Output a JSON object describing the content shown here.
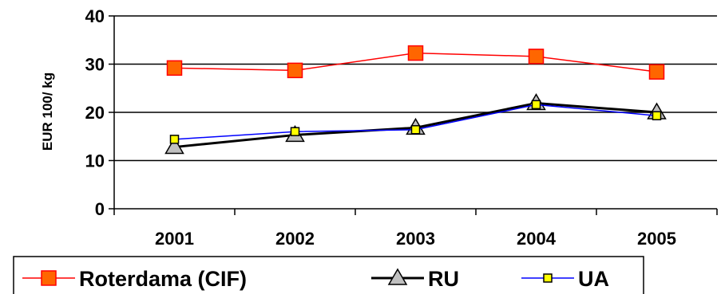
{
  "chart_data": {
    "type": "line",
    "x": [
      "2001",
      "2002",
      "2003",
      "2004",
      "2005"
    ],
    "ylabel": "EUR 100/ kg",
    "xlabel": "",
    "ylim": [
      0,
      40
    ],
    "yticks": [
      0,
      10,
      20,
      30,
      40
    ],
    "grid": "horizontal",
    "legend_position": "bottom",
    "series": [
      {
        "name": "Roterdama (CIF)",
        "values": [
          29.2,
          28.7,
          32.3,
          31.6,
          28.4
        ],
        "color": "#ff0000",
        "marker": "square",
        "marker_fill": "#ff6600",
        "marker_stroke": "#ff0000"
      },
      {
        "name": "RU",
        "values": [
          12.8,
          15.3,
          16.8,
          21.9,
          20.0
        ],
        "color": "#000000",
        "marker": "triangle",
        "marker_fill": "#c0c0c0",
        "marker_stroke": "#000000"
      },
      {
        "name": "UA",
        "values": [
          14.4,
          16.0,
          16.4,
          21.6,
          19.3
        ],
        "color": "#0000ff",
        "marker": "square-small",
        "marker_fill": "#ffff00",
        "marker_stroke": "#000000"
      }
    ]
  }
}
